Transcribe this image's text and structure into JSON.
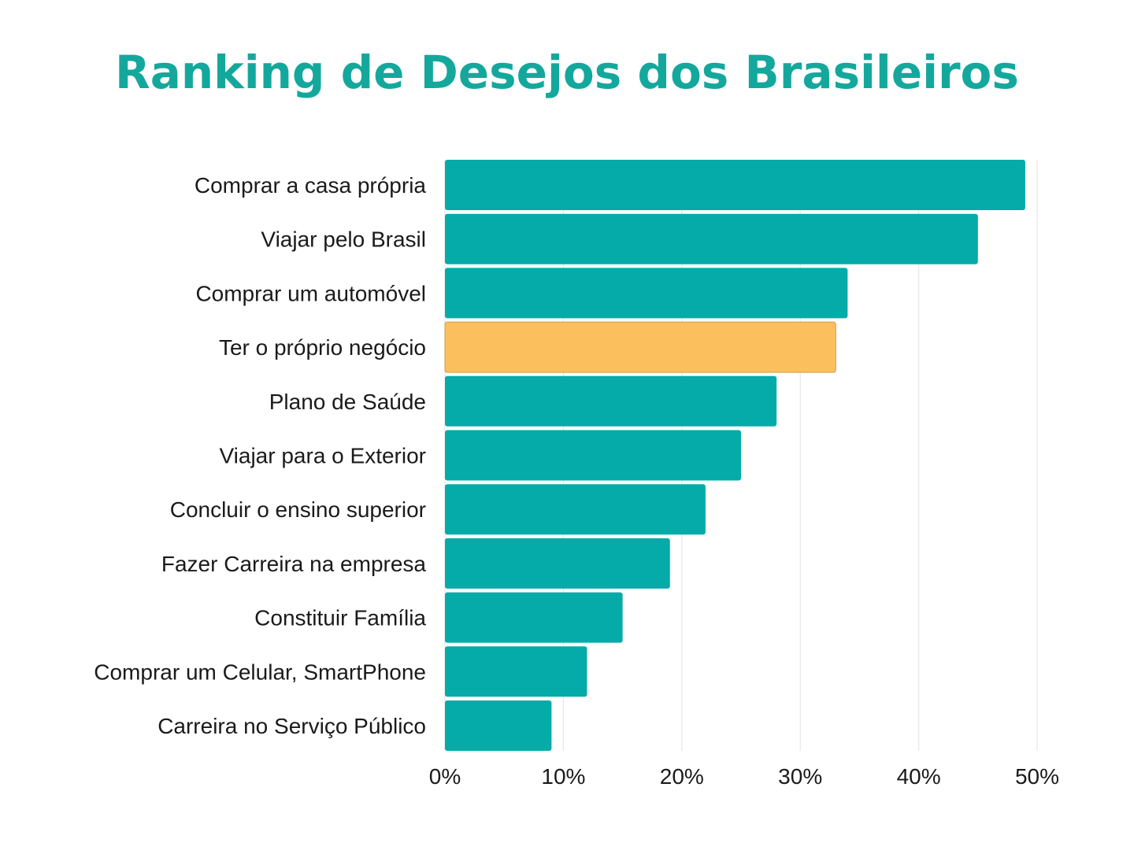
{
  "chart_data": {
    "type": "bar",
    "orientation": "horizontal",
    "title": "Ranking de Desejos dos Brasileiros",
    "categories": [
      "Comprar a casa própria",
      "Viajar pelo Brasil",
      "Comprar um automóvel",
      "Ter o próprio negócio",
      "Plano de Saúde",
      "Viajar para o Exterior",
      "Concluir o ensino superior",
      "Fazer Carreira na empresa",
      "Constituir Família",
      "Comprar um Celular, SmartPhone",
      "Carreira no Serviço Público"
    ],
    "values": [
      49,
      45,
      34,
      33,
      28,
      25,
      22,
      19,
      15,
      12,
      9
    ],
    "highlight_index": 3,
    "xlim": [
      0,
      50
    ],
    "xticks": [
      "0%",
      "10%",
      "20%",
      "30%",
      "40%",
      "50%"
    ],
    "grid": true,
    "colors": {
      "title": "#14a89d",
      "bar": "#05aba8",
      "highlight": "#fcbf5e",
      "grid": "#e6e6e6"
    }
  }
}
